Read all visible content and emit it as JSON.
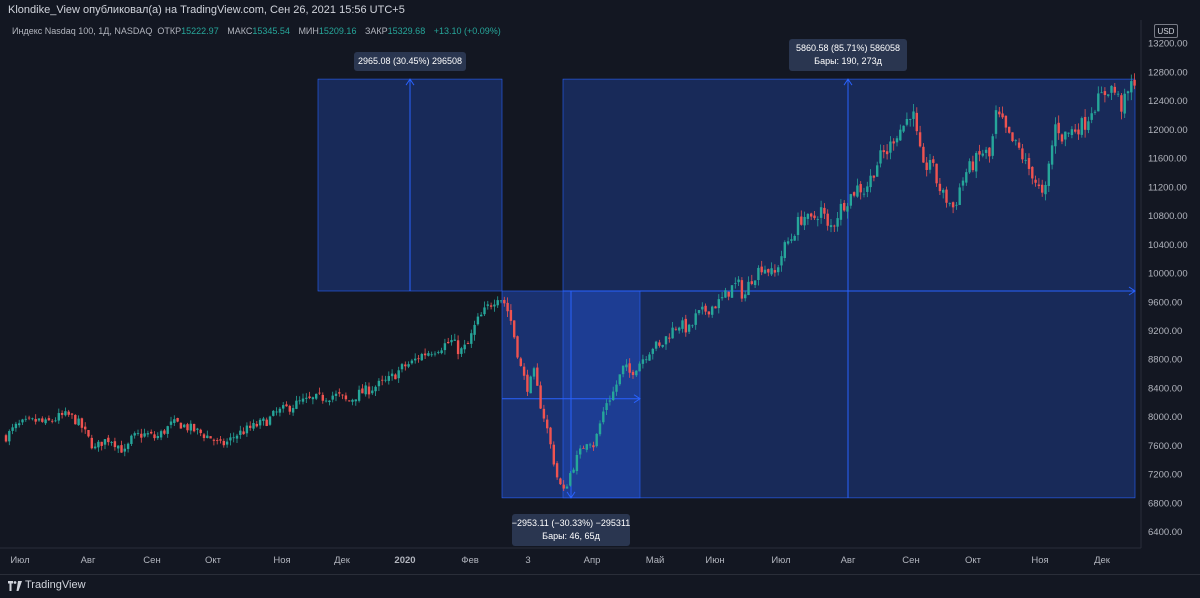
{
  "header": {
    "title": "Klondike_View опубликовал(а) на TradingView.com, Сен 26, 2021 15:56 UTC+5"
  },
  "legend": {
    "symbol": "Индекс Nasdaq 100, 1Д, NASDAQ",
    "open_label": "ОТКР",
    "open_value": "15222.97",
    "high_label": "МАКС",
    "high_value": "15345.54",
    "low_label": "МИН",
    "low_value": "15209.16",
    "close_label": "ЗАКР",
    "close_value": "15329.68",
    "change": "+13.10 (+0.09%)"
  },
  "currency": "USD",
  "footer": {
    "brand": "TradingView"
  },
  "chart_data": {
    "type": "candlestick",
    "y_ticks": [
      "13200.00",
      "12800.00",
      "12400.00",
      "12000.00",
      "11600.00",
      "11200.00",
      "10800.00",
      "10400.00",
      "10000.00",
      "9600.00",
      "9200.00",
      "8800.00",
      "8400.00",
      "8000.00",
      "7600.00",
      "7200.00",
      "6800.00",
      "6400.00"
    ],
    "ylim": [
      6200,
      13300
    ],
    "x_ticks": [
      "Июл",
      "Авг",
      "Сен",
      "Окт",
      "Ноя",
      "Дек",
      "2020",
      "Фев",
      "3",
      "Апр",
      "Май",
      "Июн",
      "Июл",
      "Авг",
      "Сен",
      "Окт",
      "Ноя",
      "Дек"
    ],
    "colors": {
      "up": "#26a69a",
      "down": "#ef5350",
      "measure": "#2962ff"
    },
    "close_path": [
      [
        0,
        7650
      ],
      [
        8,
        7750
      ],
      [
        15,
        7850
      ],
      [
        22,
        7900
      ],
      [
        30,
        7920
      ],
      [
        38,
        7950
      ],
      [
        45,
        7900
      ],
      [
        52,
        7950
      ],
      [
        60,
        8000
      ],
      [
        68,
        8020
      ],
      [
        75,
        7960
      ],
      [
        82,
        7850
      ],
      [
        88,
        7700
      ],
      [
        95,
        7550
      ],
      [
        102,
        7650
      ],
      [
        110,
        7700
      ],
      [
        118,
        7600
      ],
      [
        125,
        7500
      ],
      [
        132,
        7700
      ],
      [
        140,
        7750
      ],
      [
        148,
        7750
      ],
      [
        156,
        7700
      ],
      [
        164,
        7800
      ],
      [
        172,
        7900
      ],
      [
        180,
        7900
      ],
      [
        188,
        7850
      ],
      [
        196,
        7800
      ],
      [
        204,
        7750
      ],
      [
        212,
        7700
      ],
      [
        220,
        7600
      ],
      [
        228,
        7650
      ],
      [
        236,
        7750
      ],
      [
        244,
        7800
      ],
      [
        252,
        7850
      ],
      [
        260,
        7900
      ],
      [
        268,
        7950
      ],
      [
        276,
        8050
      ],
      [
        284,
        8100
      ],
      [
        292,
        8150
      ],
      [
        300,
        8200
      ],
      [
        308,
        8220
      ],
      [
        316,
        8250
      ],
      [
        324,
        8270
      ],
      [
        332,
        8300
      ],
      [
        340,
        8280
      ],
      [
        348,
        8200
      ],
      [
        356,
        8300
      ],
      [
        364,
        8350
      ],
      [
        372,
        8400
      ],
      [
        380,
        8450
      ],
      [
        388,
        8500
      ],
      [
        396,
        8600
      ],
      [
        404,
        8700
      ],
      [
        412,
        8750
      ],
      [
        420,
        8850
      ],
      [
        428,
        8900
      ],
      [
        436,
        8950
      ],
      [
        444,
        9000
      ],
      [
        452,
        9050
      ],
      [
        460,
        8900
      ],
      [
        468,
        9000
      ],
      [
        476,
        9300
      ],
      [
        484,
        9450
      ],
      [
        492,
        9600
      ],
      [
        498,
        9700
      ],
      [
        504,
        9600
      ],
      [
        510,
        9400
      ],
      [
        516,
        9000
      ],
      [
        522,
        8600
      ],
      [
        528,
        8400
      ],
      [
        534,
        8600
      ],
      [
        540,
        8200
      ],
      [
        546,
        7900
      ],
      [
        552,
        7500
      ],
      [
        558,
        7100
      ],
      [
        564,
        6950
      ],
      [
        570,
        7200
      ],
      [
        576,
        7400
      ],
      [
        582,
        7550
      ],
      [
        588,
        7700
      ],
      [
        594,
        7600
      ],
      [
        600,
        7900
      ],
      [
        606,
        8200
      ],
      [
        612,
        8300
      ],
      [
        618,
        8500
      ],
      [
        624,
        8700
      ],
      [
        630,
        8600
      ],
      [
        636,
        8700
      ],
      [
        642,
        8800
      ],
      [
        648,
        8900
      ],
      [
        654,
        9000
      ],
      [
        660,
        8950
      ],
      [
        666,
        9100
      ],
      [
        672,
        9200
      ],
      [
        678,
        9300
      ],
      [
        684,
        9250
      ],
      [
        690,
        9200
      ],
      [
        696,
        9400
      ],
      [
        702,
        9450
      ],
      [
        708,
        9500
      ],
      [
        714,
        9550
      ],
      [
        720,
        9600
      ],
      [
        726,
        9700
      ],
      [
        732,
        9800
      ],
      [
        738,
        9850
      ],
      [
        744,
        9650
      ],
      [
        750,
        9900
      ],
      [
        756,
        10000
      ],
      [
        762,
        10100
      ],
      [
        768,
        10050
      ],
      [
        774,
        9950
      ],
      [
        780,
        10200
      ],
      [
        786,
        10400
      ],
      [
        792,
        10500
      ],
      [
        798,
        10700
      ],
      [
        804,
        10800
      ],
      [
        810,
        10700
      ],
      [
        816,
        10800
      ],
      [
        822,
        10900
      ],
      [
        828,
        10600
      ],
      [
        834,
        10700
      ],
      [
        840,
        10900
      ],
      [
        846,
        11000
      ],
      [
        852,
        11100
      ],
      [
        858,
        11200
      ],
      [
        864,
        11150
      ],
      [
        870,
        11300
      ],
      [
        876,
        11500
      ],
      [
        882,
        11650
      ],
      [
        888,
        11700
      ],
      [
        894,
        11900
      ],
      [
        900,
        12000
      ],
      [
        906,
        12100
      ],
      [
        912,
        12300
      ],
      [
        918,
        11800
      ],
      [
        924,
        11400
      ],
      [
        930,
        11600
      ],
      [
        936,
        11300
      ],
      [
        942,
        11100
      ],
      [
        948,
        11000
      ],
      [
        954,
        10900
      ],
      [
        960,
        11200
      ],
      [
        966,
        11400
      ],
      [
        972,
        11500
      ],
      [
        978,
        11600
      ],
      [
        984,
        11700
      ],
      [
        990,
        11600
      ],
      [
        996,
        12200
      ],
      [
        1002,
        12100
      ],
      [
        1008,
        11900
      ],
      [
        1014,
        11800
      ],
      [
        1020,
        11700
      ],
      [
        1026,
        11500
      ],
      [
        1032,
        11400
      ],
      [
        1038,
        11200
      ],
      [
        1044,
        11000
      ],
      [
        1050,
        11600
      ],
      [
        1056,
        12100
      ],
      [
        1062,
        11900
      ],
      [
        1068,
        11950
      ],
      [
        1074,
        12000
      ],
      [
        1080,
        12050
      ],
      [
        1086,
        12100
      ],
      [
        1092,
        12300
      ],
      [
        1098,
        12400
      ],
      [
        1104,
        12500
      ],
      [
        1110,
        12600
      ],
      [
        1116,
        12500
      ],
      [
        1122,
        12300
      ],
      [
        1128,
        12500
      ],
      [
        1134,
        12700
      ]
    ],
    "measurements": [
      {
        "text": "2965.08 (30.45%) 296508",
        "from_price": 9750,
        "to_price": 12700
      },
      {
        "text": "5860.58 (85.71%) 586058",
        "text2": "Бары: 190, 273д",
        "from_price": 6870,
        "to_price": 12700
      },
      {
        "text": "−2953.11 (−30.33%) −295311",
        "text2": "Бары: 46, 65д",
        "from_price": 9750,
        "to_price": 6870
      }
    ]
  }
}
